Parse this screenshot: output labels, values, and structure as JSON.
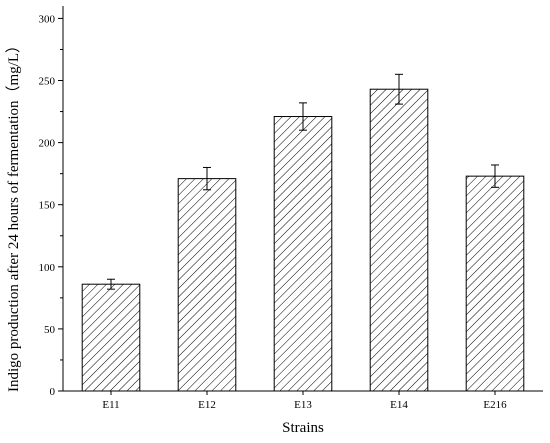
{
  "chart_data": {
    "type": "bar",
    "title": "",
    "xlabel": "Strains",
    "ylabel": "Indigo production after 24 hours of fermentation（mg/L）",
    "categories": [
      "E11",
      "E12",
      "E13",
      "E14",
      "E216"
    ],
    "values": [
      86,
      171,
      221,
      243,
      173
    ],
    "errors": [
      4,
      9,
      11,
      12,
      9
    ],
    "ylim": [
      0,
      310
    ],
    "yticks": [
      0,
      50,
      100,
      150,
      200,
      250,
      300
    ],
    "ytick_labels": [
      "0",
      "50",
      "100",
      "150",
      "200",
      "250",
      "300"
    ],
    "bar_fill": "hatched",
    "grid": false,
    "colors": {
      "axis": "#000000",
      "bar_edge": "#000000",
      "hatch": "#000000",
      "background": "#ffffff"
    }
  }
}
